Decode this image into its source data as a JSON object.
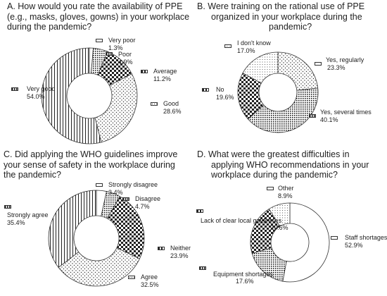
{
  "chart_data": [
    {
      "type": "pie",
      "donut": true,
      "title_lines": [
        "A. How would you rate the availability of PPE",
        "(e.g., masks, gloves, gowns) in your workplace",
        "during the pandemic?"
      ],
      "slices": [
        {
          "label": "Very poor",
          "value": "1.3%",
          "pct": 1.3,
          "pattern": "blank"
        },
        {
          "label": "Poor",
          "value": "4.9%",
          "pct": 4.9,
          "pattern": "dense-dots"
        },
        {
          "label": "Average",
          "value": "11.2%",
          "pct": 11.2,
          "pattern": "checker"
        },
        {
          "label": "Good",
          "value": "28.6%",
          "pct": 28.6,
          "pattern": "sparse-dots"
        },
        {
          "label": "Very good",
          "value": "54.0%",
          "pct": 54.0,
          "pattern": "vlines"
        }
      ]
    },
    {
      "type": "pie",
      "donut": true,
      "title_lines": [
        "B. Were training on the rational use of PPE",
        "organized in your workplace during the",
        "pandemic?"
      ],
      "slices": [
        {
          "label": "Yes, regularly",
          "value": "23.3%",
          "pct": 23.3,
          "pattern": "sparse-dots"
        },
        {
          "label": "Yes, several times",
          "value": "40.1%",
          "pct": 40.1,
          "pattern": "dense-dots"
        },
        {
          "label": "No",
          "value": "19.6%",
          "pct": 19.6,
          "pattern": "checker"
        },
        {
          "label": "I don't know",
          "value": "17.0%",
          "pct": 17.0,
          "pattern": "fine-dots"
        }
      ]
    },
    {
      "type": "pie",
      "donut": true,
      "title_lines": [
        "C. Did applying the WHO guidelines improve",
        "your sense of safety in the workplace during",
        "the pandemic?"
      ],
      "slices": [
        {
          "label": "Strongly disagree",
          "value": "3.4%",
          "pct": 3.4,
          "pattern": "blank"
        },
        {
          "label": "Disagree",
          "value": "4.7%",
          "pct": 4.7,
          "pattern": "dense-dots"
        },
        {
          "label": "Neither",
          "value": "23.9%",
          "pct": 23.9,
          "pattern": "checker"
        },
        {
          "label": "Agree",
          "value": "32.5%",
          "pct": 32.5,
          "pattern": "sparse-dots"
        },
        {
          "label": "Strongly agree",
          "value": "35.4%",
          "pct": 35.4,
          "pattern": "vlines"
        }
      ]
    },
    {
      "type": "pie",
      "donut": true,
      "title_lines": [
        "D. What were the greatest difficulties in",
        "applying WHO recommendations in your",
        "workplace during the pandemic?"
      ],
      "slices": [
        {
          "label": "Staff shortages",
          "value": "52.9%",
          "pct": 52.9,
          "pattern": "blank"
        },
        {
          "label": "Equipment shortages",
          "value": "17.6%",
          "pct": 17.6,
          "pattern": "dense-dots"
        },
        {
          "label": "Lack of clear local guidelines",
          "value": "20.6%",
          "pct": 20.6,
          "pattern": "checker"
        },
        {
          "label": "Other",
          "value": "8.9%",
          "pct": 8.9,
          "pattern": "fine-dots"
        }
      ]
    }
  ]
}
